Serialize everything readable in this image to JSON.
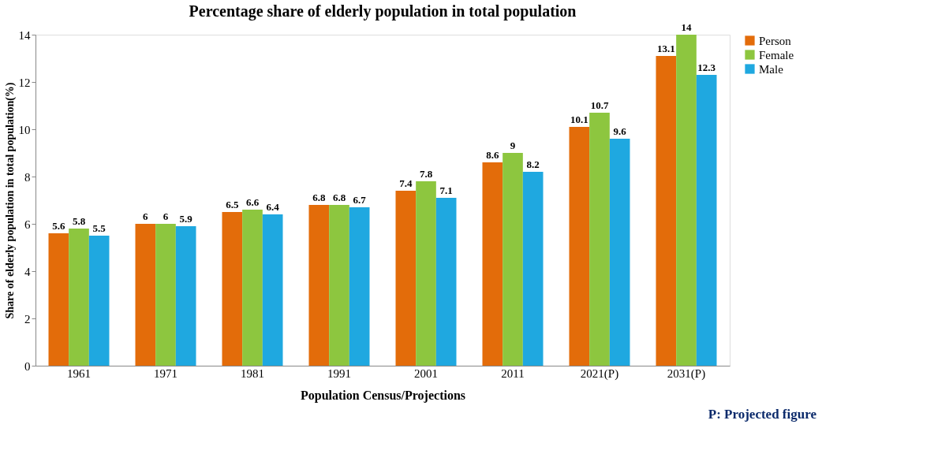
{
  "chart_data": {
    "type": "bar",
    "title": "Percentage share of elderly population in total population",
    "xlabel": "Population Census/Projections",
    "ylabel": "Share of elderly population in total population(%)",
    "categories": [
      "1961",
      "1971",
      "1981",
      "1991",
      "2001",
      "2011",
      "2021(P)",
      "2031(P)"
    ],
    "series": [
      {
        "name": "Person",
        "color": "#e36c0a",
        "values": [
          5.6,
          6,
          6.5,
          6.8,
          7.4,
          8.6,
          10.1,
          13.1
        ]
      },
      {
        "name": "Female",
        "color": "#8dc63f",
        "values": [
          5.8,
          6,
          6.6,
          6.8,
          7.8,
          9,
          10.7,
          14
        ]
      },
      {
        "name": "Male",
        "color": "#1fa8e0",
        "values": [
          5.5,
          5.9,
          6.4,
          6.7,
          7.1,
          8.2,
          9.6,
          12.3
        ]
      }
    ],
    "ylim": [
      0,
      14
    ],
    "yticks": [
      0,
      2,
      4,
      6,
      8,
      10,
      12,
      14
    ],
    "grid": false,
    "legend": "right",
    "data_labels": true,
    "annotations": [
      "P: Projected figure"
    ]
  }
}
